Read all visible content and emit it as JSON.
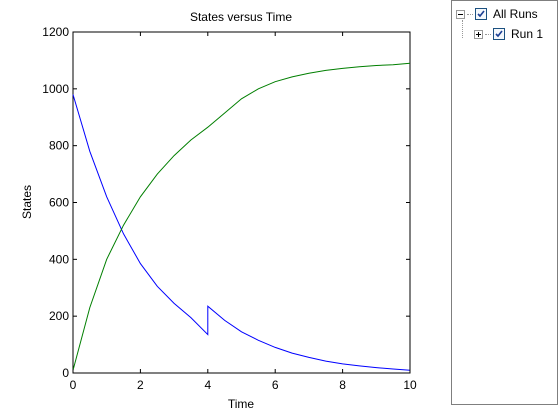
{
  "chart_data": {
    "type": "line",
    "title": "States versus Time",
    "xlabel": "Time",
    "ylabel": "States",
    "xlim": [
      0,
      10
    ],
    "ylim": [
      0,
      1200
    ],
    "xticks": [
      0,
      2,
      4,
      6,
      8,
      10
    ],
    "yticks": [
      0,
      200,
      400,
      600,
      800,
      1000,
      1200
    ],
    "grid": false,
    "series": [
      {
        "color": "#0000ff",
        "x": [
          0,
          0.5,
          1,
          1.5,
          2,
          2.5,
          3,
          3.5,
          4,
          4.0001,
          4.5,
          5,
          5.5,
          6,
          6.5,
          7,
          7.5,
          8,
          8.5,
          9,
          9.5,
          10
        ],
        "y": [
          980,
          780,
          620,
          490,
          385,
          305,
          245,
          195,
          135,
          235,
          185,
          145,
          115,
          90,
          70,
          55,
          42,
          32,
          25,
          19,
          14,
          10
        ]
      },
      {
        "color": "#007f00",
        "x": [
          0,
          0.5,
          1,
          1.5,
          2,
          2.5,
          3,
          3.5,
          4,
          4.5,
          5,
          5.5,
          6,
          6.5,
          7,
          7.5,
          8,
          8.5,
          9,
          9.5,
          10
        ],
        "y": [
          10,
          230,
          400,
          520,
          620,
          700,
          765,
          820,
          865,
          915,
          965,
          1000,
          1025,
          1042,
          1055,
          1065,
          1072,
          1078,
          1082,
          1085,
          1090
        ]
      }
    ]
  },
  "legend": {
    "items": [
      {
        "label": "All Runs",
        "checked": true
      },
      {
        "label": "Run 1",
        "checked": true
      }
    ]
  }
}
